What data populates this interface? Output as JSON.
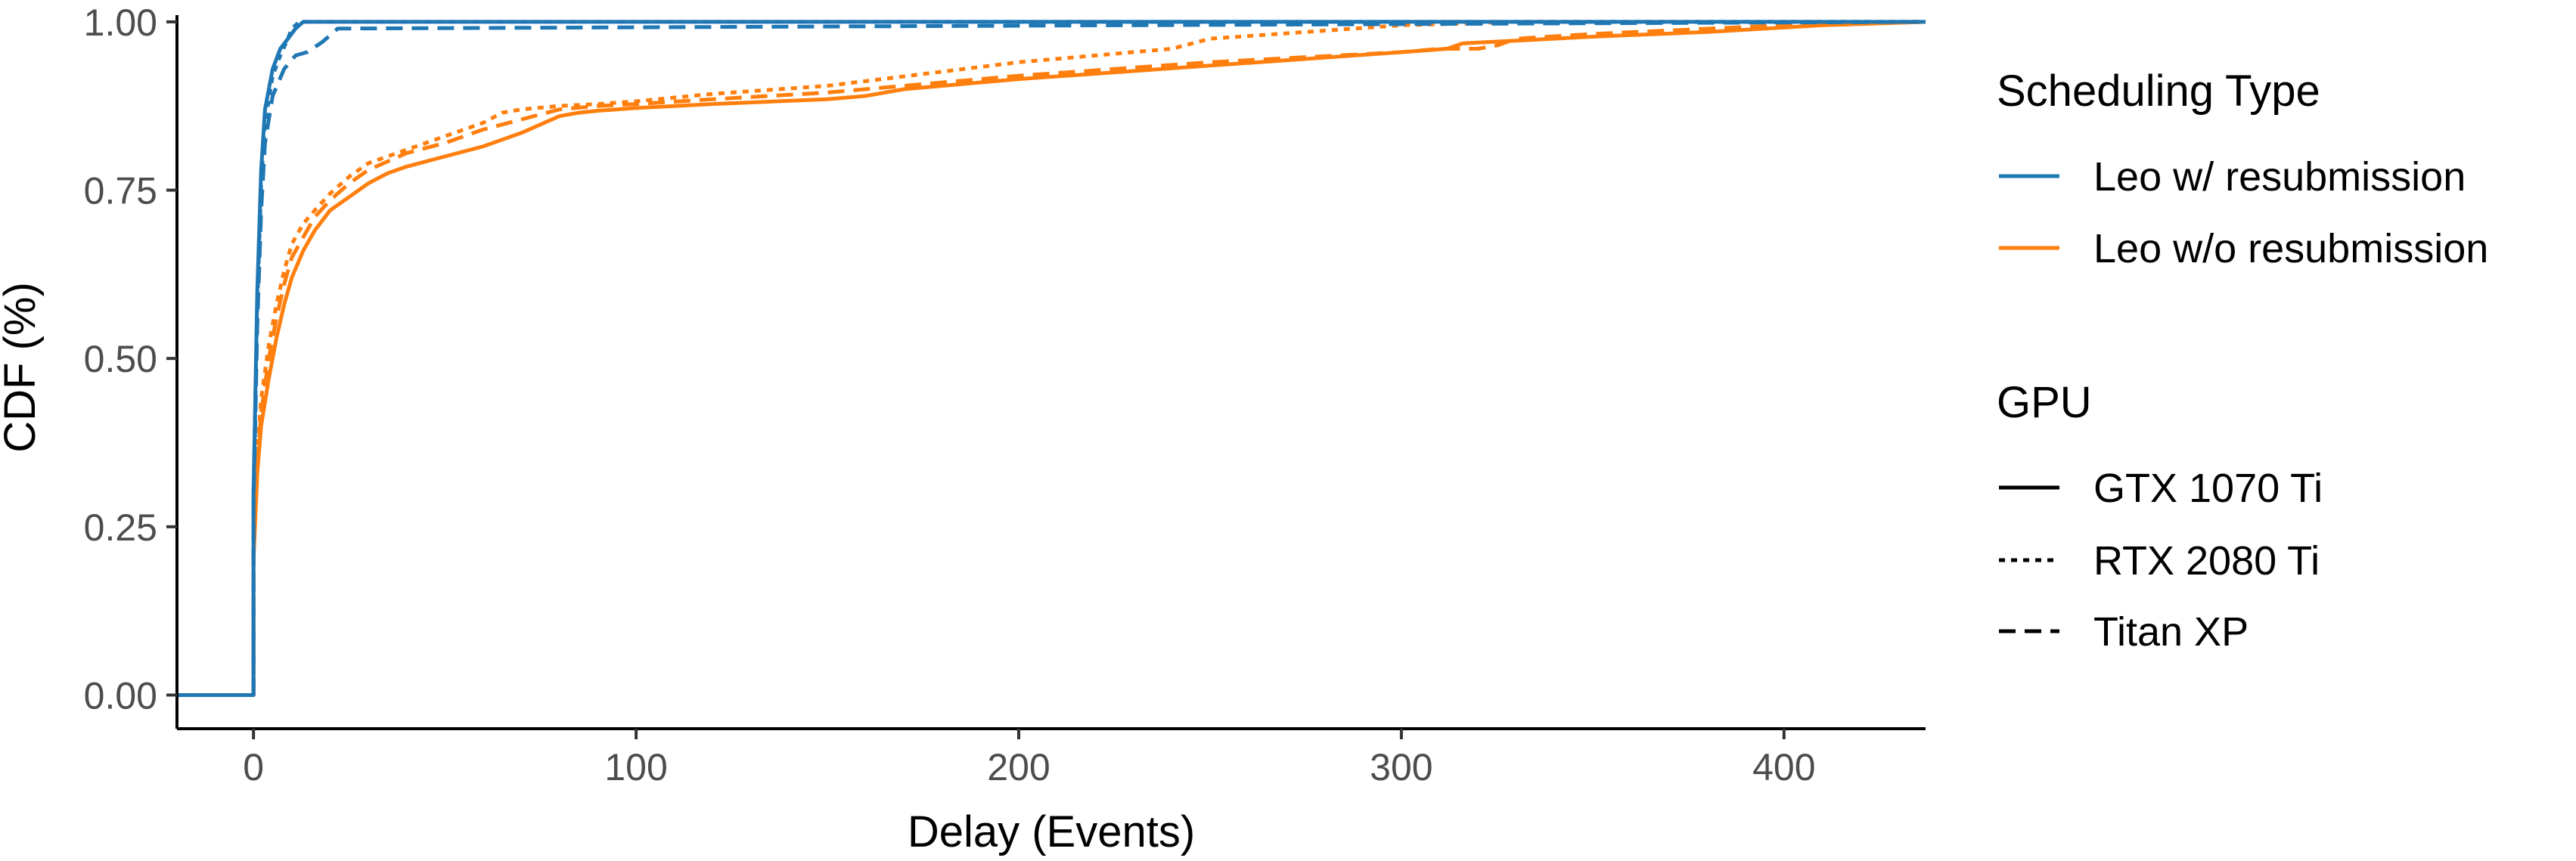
{
  "chart_data": {
    "type": "line",
    "title": "",
    "xlabel": "Delay (Events)",
    "ylabel": "CDF (%)",
    "xlim": [
      -20,
      437
    ],
    "ylim": [
      -0.05,
      1.01
    ],
    "x_ticks": [
      0,
      100,
      200,
      300,
      400
    ],
    "y_ticks": [
      0.0,
      0.25,
      0.5,
      0.75,
      1.0
    ],
    "y_tick_labels": [
      "0.00",
      "0.25",
      "0.50",
      "0.75",
      "1.00"
    ],
    "grid": false,
    "legend_placement": "right",
    "color_legend": {
      "title": "Scheduling Type",
      "entries": [
        {
          "label": "Leo w/ resubmission",
          "color": "#1f77b4"
        },
        {
          "label": "Leo w/o resubmission",
          "color": "#ff7f0e"
        }
      ]
    },
    "linetype_legend": {
      "title": "GPU",
      "entries": [
        {
          "label": "GTX 1070 Ti",
          "dash": "solid"
        },
        {
          "label": "RTX 2080 Ti",
          "dash": "dotted"
        },
        {
          "label": "Titan XP",
          "dash": "dashed"
        }
      ]
    },
    "series": [
      {
        "scheduling": "Leo w/ resubmission",
        "gpu": "GTX 1070 Ti",
        "color": "#1f77b4",
        "dash": "solid",
        "x": [
          -20,
          0,
          0,
          1,
          2,
          3,
          5,
          7,
          9,
          11,
          13,
          437
        ],
        "y": [
          0,
          0,
          0.3,
          0.6,
          0.78,
          0.87,
          0.93,
          0.96,
          0.975,
          0.99,
          1.0,
          1.0
        ]
      },
      {
        "scheduling": "Leo w/ resubmission",
        "gpu": "RTX 2080 Ti",
        "color": "#1f77b4",
        "dash": "dotted",
        "x": [
          -20,
          0,
          0,
          1,
          2,
          3,
          5,
          7,
          9,
          10,
          12,
          437
        ],
        "y": [
          0,
          0,
          0.3,
          0.58,
          0.76,
          0.85,
          0.92,
          0.95,
          0.975,
          0.99,
          1.0,
          1.0
        ]
      },
      {
        "scheduling": "Leo w/ resubmission",
        "gpu": "Titan XP",
        "color": "#1f77b4",
        "dash": "dashed",
        "x": [
          -20,
          0,
          0,
          1,
          2,
          3,
          5,
          8,
          11,
          14,
          18,
          22,
          437
        ],
        "y": [
          0,
          0,
          0.28,
          0.55,
          0.72,
          0.82,
          0.89,
          0.93,
          0.95,
          0.955,
          0.97,
          0.99,
          1.0
        ]
      },
      {
        "scheduling": "Leo w/o resubmission",
        "gpu": "GTX 1070 Ti",
        "color": "#ff7f0e",
        "dash": "solid",
        "x": [
          -20,
          0,
          0,
          1,
          2,
          4,
          6,
          8,
          10,
          13,
          16,
          20,
          25,
          30,
          35,
          40,
          50,
          60,
          70,
          80,
          85,
          90,
          100,
          120,
          150,
          160,
          170,
          200,
          250,
          300,
          312,
          316,
          330,
          350,
          380,
          410,
          437
        ],
        "y": [
          0,
          0,
          0.2,
          0.33,
          0.4,
          0.47,
          0.53,
          0.58,
          0.62,
          0.66,
          0.69,
          0.72,
          0.74,
          0.76,
          0.775,
          0.785,
          0.8,
          0.815,
          0.835,
          0.86,
          0.865,
          0.868,
          0.872,
          0.878,
          0.885,
          0.89,
          0.9,
          0.915,
          0.935,
          0.955,
          0.96,
          0.968,
          0.972,
          0.978,
          0.985,
          0.995,
          1.0
        ]
      },
      {
        "scheduling": "Leo w/o resubmission",
        "gpu": "RTX 2080 Ti",
        "color": "#ff7f0e",
        "dash": "dotted",
        "x": [
          -20,
          0,
          0,
          1,
          2,
          4,
          6,
          8,
          10,
          13,
          16,
          20,
          25,
          30,
          40,
          50,
          60,
          65,
          70,
          80,
          90,
          100,
          120,
          150,
          200,
          240,
          250,
          300,
          330,
          400,
          437
        ],
        "y": [
          0,
          0,
          0.22,
          0.36,
          0.44,
          0.52,
          0.58,
          0.63,
          0.67,
          0.7,
          0.72,
          0.745,
          0.77,
          0.79,
          0.81,
          0.83,
          0.85,
          0.865,
          0.87,
          0.875,
          0.878,
          0.882,
          0.893,
          0.905,
          0.94,
          0.96,
          0.975,
          0.995,
          1.0,
          1.0,
          1.0
        ]
      },
      {
        "scheduling": "Leo w/o resubmission",
        "gpu": "Titan XP",
        "color": "#ff7f0e",
        "dash": "dashed",
        "x": [
          -20,
          0,
          0,
          1,
          2,
          4,
          6,
          8,
          10,
          13,
          16,
          20,
          25,
          30,
          40,
          50,
          60,
          70,
          80,
          90,
          100,
          120,
          150,
          200,
          250,
          300,
          310,
          320,
          325,
          330,
          350,
          400,
          437
        ],
        "y": [
          0,
          0,
          0.21,
          0.34,
          0.42,
          0.5,
          0.56,
          0.61,
          0.65,
          0.68,
          0.71,
          0.735,
          0.76,
          0.78,
          0.805,
          0.82,
          0.84,
          0.855,
          0.87,
          0.875,
          0.878,
          0.885,
          0.895,
          0.92,
          0.94,
          0.955,
          0.96,
          0.96,
          0.965,
          0.975,
          0.982,
          0.995,
          1.0
        ]
      }
    ]
  }
}
